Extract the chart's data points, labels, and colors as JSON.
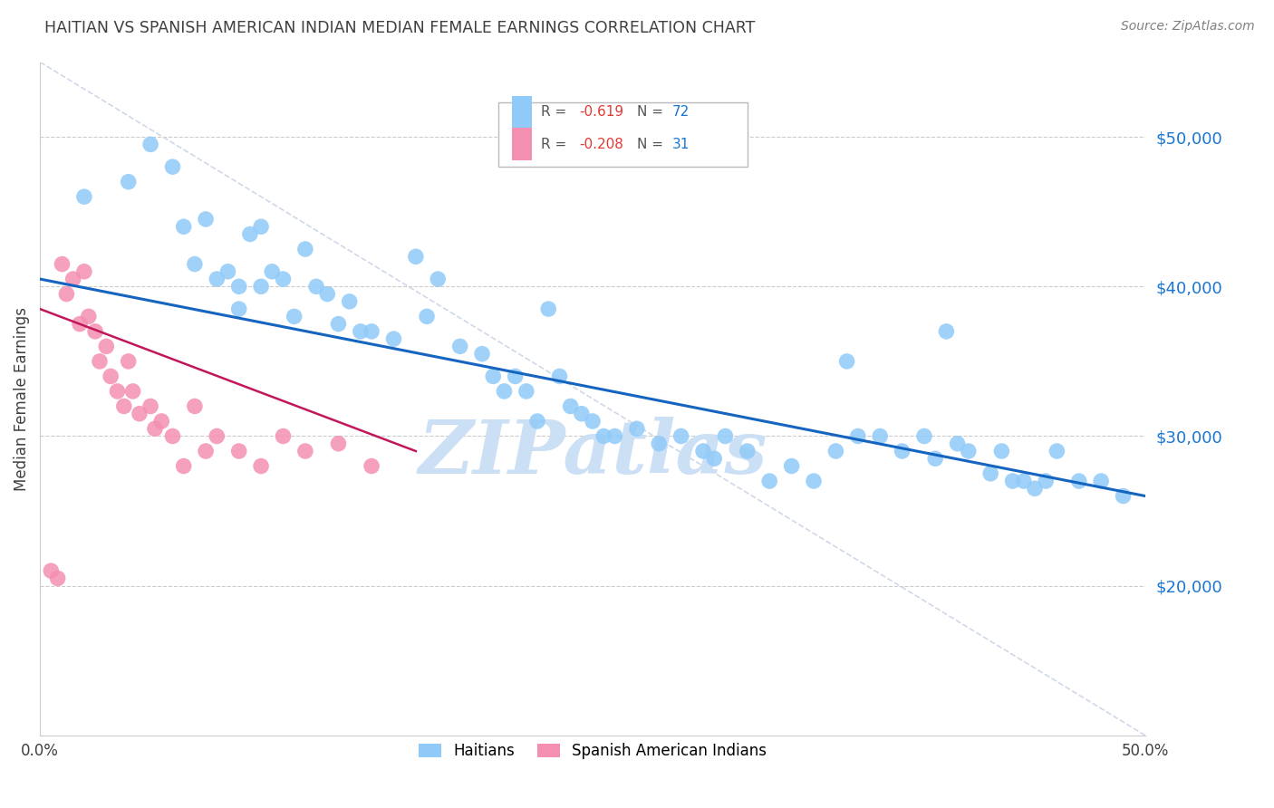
{
  "title": "HAITIAN VS SPANISH AMERICAN INDIAN MEDIAN FEMALE EARNINGS CORRELATION CHART",
  "source": "Source: ZipAtlas.com",
  "ylabel": "Median Female Earnings",
  "right_yticks": [
    "$50,000",
    "$40,000",
    "$30,000",
    "$20,000"
  ],
  "right_ytick_vals": [
    50000,
    40000,
    30000,
    20000
  ],
  "ylim": [
    10000,
    55000
  ],
  "xlim": [
    0.0,
    0.5
  ],
  "watermark": "ZIPatlas",
  "legend_r1": "-0.619",
  "legend_n1": "72",
  "legend_r2": "-0.208",
  "legend_n2": "31",
  "haitians_x": [
    0.02,
    0.04,
    0.05,
    0.06,
    0.065,
    0.07,
    0.075,
    0.08,
    0.085,
    0.09,
    0.09,
    0.095,
    0.1,
    0.1,
    0.105,
    0.11,
    0.115,
    0.12,
    0.125,
    0.13,
    0.135,
    0.14,
    0.145,
    0.15,
    0.16,
    0.17,
    0.175,
    0.18,
    0.19,
    0.2,
    0.205,
    0.21,
    0.215,
    0.22,
    0.225,
    0.23,
    0.235,
    0.24,
    0.245,
    0.25,
    0.255,
    0.26,
    0.27,
    0.28,
    0.29,
    0.3,
    0.305,
    0.31,
    0.32,
    0.33,
    0.34,
    0.35,
    0.36,
    0.365,
    0.37,
    0.38,
    0.39,
    0.4,
    0.405,
    0.41,
    0.415,
    0.42,
    0.43,
    0.435,
    0.44,
    0.445,
    0.45,
    0.455,
    0.46,
    0.47,
    0.48,
    0.49
  ],
  "haitians_y": [
    46000,
    47000,
    49500,
    48000,
    44000,
    41500,
    44500,
    40500,
    41000,
    40000,
    38500,
    43500,
    44000,
    40000,
    41000,
    40500,
    38000,
    42500,
    40000,
    39500,
    37500,
    39000,
    37000,
    37000,
    36500,
    42000,
    38000,
    40500,
    36000,
    35500,
    34000,
    33000,
    34000,
    33000,
    31000,
    38500,
    34000,
    32000,
    31500,
    31000,
    30000,
    30000,
    30500,
    29500,
    30000,
    29000,
    28500,
    30000,
    29000,
    27000,
    28000,
    27000,
    29000,
    35000,
    30000,
    30000,
    29000,
    30000,
    28500,
    37000,
    29500,
    29000,
    27500,
    29000,
    27000,
    27000,
    26500,
    27000,
    29000,
    27000,
    27000,
    26000
  ],
  "spanish_x": [
    0.005,
    0.008,
    0.01,
    0.012,
    0.015,
    0.018,
    0.02,
    0.022,
    0.025,
    0.027,
    0.03,
    0.032,
    0.035,
    0.038,
    0.04,
    0.042,
    0.045,
    0.05,
    0.052,
    0.055,
    0.06,
    0.065,
    0.07,
    0.075,
    0.08,
    0.09,
    0.1,
    0.11,
    0.12,
    0.135,
    0.15
  ],
  "spanish_y": [
    21000,
    20500,
    41500,
    39500,
    40500,
    37500,
    41000,
    38000,
    37000,
    35000,
    36000,
    34000,
    33000,
    32000,
    35000,
    33000,
    31500,
    32000,
    30500,
    31000,
    30000,
    28000,
    32000,
    29000,
    30000,
    29000,
    28000,
    30000,
    29000,
    29500,
    28000
  ],
  "haitian_line_x": [
    0.0,
    0.5
  ],
  "haitian_line_y": [
    40500,
    26000
  ],
  "spanish_line_x": [
    0.0,
    0.17
  ],
  "spanish_line_y": [
    38500,
    29000
  ],
  "diag_line_x": [
    0.0,
    0.5
  ],
  "diag_line_y": [
    55000,
    10000
  ],
  "haitian_line_color": "#1565C0",
  "spanish_line_color": "#C2185B",
  "haitian_scatter_color": "#90CAF9",
  "spanish_scatter_color": "#F48FB1",
  "watermark_color": "#cce0f5",
  "background_color": "#ffffff",
  "grid_color": "#cccccc",
  "title_color": "#404040",
  "right_tick_color": "#1976D2",
  "source_color": "#808080",
  "diag_line_color": "#d0d8e8"
}
